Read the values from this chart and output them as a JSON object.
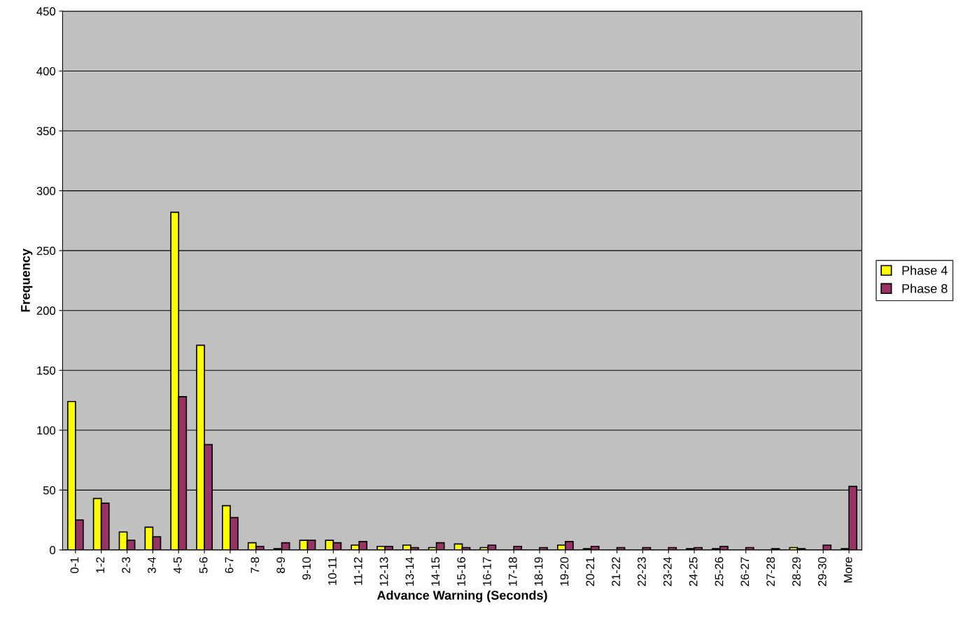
{
  "chart_data": {
    "type": "bar",
    "xlabel": "Advance Warning (Seconds)",
    "ylabel": "Frequency",
    "categories": [
      "0-1",
      "1-2",
      "2-3",
      "3-4",
      "4-5",
      "5-6",
      "6-7",
      "7-8",
      "8-9",
      "9-10",
      "10-11",
      "11-12",
      "12-13",
      "13-14",
      "14-15",
      "15-16",
      "16-17",
      "17-18",
      "18-19",
      "19-20",
      "20-21",
      "21-22",
      "22-23",
      "23-24",
      "24-25",
      "25-26",
      "26-27",
      "27-28",
      "28-29",
      "29-30",
      "More"
    ],
    "series": [
      {
        "name": "Phase 4",
        "color": "#ffff00",
        "values": [
          124,
          43,
          15,
          19,
          282,
          171,
          37,
          6,
          1,
          8,
          8,
          4,
          3,
          4,
          2,
          5,
          2,
          0,
          0,
          4,
          1,
          0,
          0,
          0,
          1,
          1,
          0,
          0,
          2,
          0,
          1
        ]
      },
      {
        "name": "Phase 8",
        "color": "#993366",
        "values": [
          25,
          39,
          8,
          11,
          128,
          88,
          27,
          3,
          6,
          8,
          6,
          7,
          3,
          2,
          6,
          2,
          4,
          3,
          2,
          7,
          3,
          2,
          2,
          2,
          2,
          3,
          2,
          1,
          1,
          4,
          53
        ]
      }
    ],
    "ylim": [
      0,
      450
    ],
    "yticks": [
      0,
      50,
      100,
      150,
      200,
      250,
      300,
      350,
      400,
      450
    ],
    "grid": "y",
    "legend": "right"
  }
}
